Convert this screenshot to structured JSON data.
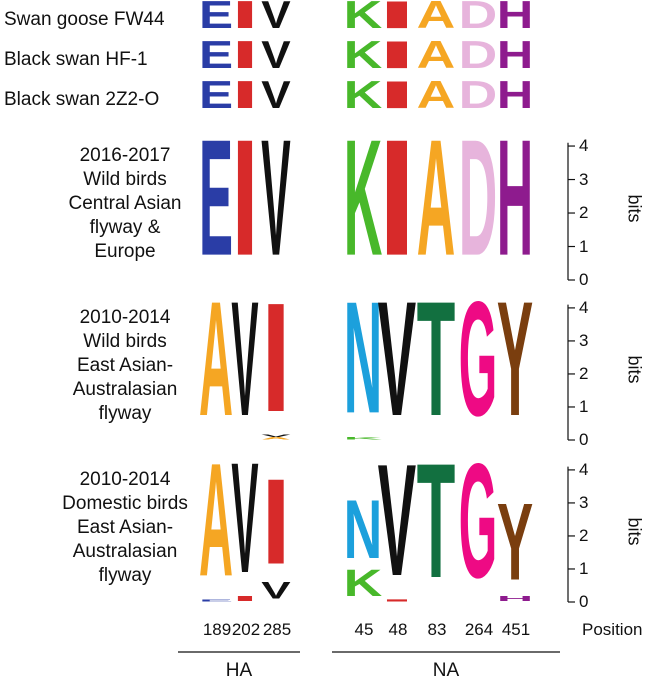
{
  "colors": {
    "E": "#2a3da6",
    "I": "#d72a2a",
    "V": "#111111",
    "K": "#48b82a",
    "A": "#f5a623",
    "D": "#e7b4dc",
    "H": "#8e1b8e",
    "N": "#1ca0dc",
    "T": "#127040",
    "G": "#ee0a84",
    "Y": "#7a3e0f"
  },
  "chart_data": {
    "type": "sequence-logo",
    "ylabel": "bits",
    "ylim": [
      0,
      4.3
    ],
    "yticks": [
      "0",
      "1",
      "2",
      "3",
      "4"
    ],
    "positions": [
      "189",
      "202",
      "285",
      "45",
      "48",
      "83",
      "264",
      "451"
    ],
    "position_label": "Position",
    "groups": [
      {
        "name": "HA",
        "positions": [
          "189",
          "202",
          "285"
        ]
      },
      {
        "name": "NA",
        "positions": [
          "45",
          "48",
          "83",
          "264",
          "451"
        ]
      }
    ],
    "strains": [
      {
        "name": "Swan goose FW44",
        "residues": [
          "E",
          "I",
          "V",
          "K",
          "I",
          "A",
          "D",
          "H"
        ]
      },
      {
        "name": "Black swan HF-1",
        "residues": [
          "E",
          "I",
          "V",
          "K",
          "I",
          "A",
          "D",
          "H"
        ]
      },
      {
        "name": "Black swan 2Z2-O",
        "residues": [
          "E",
          "I",
          "V",
          "K",
          "I",
          "A",
          "D",
          "H"
        ]
      }
    ],
    "logos": [
      {
        "label": [
          "2016-2017",
          "Wild birds",
          "Central Asian",
          "flyway &",
          "Europe"
        ],
        "columns": [
          [
            {
              "letter": "E",
              "bits": 4.1
            }
          ],
          [
            {
              "letter": "I",
              "bits": 4.1
            }
          ],
          [
            {
              "letter": "V",
              "bits": 4.1
            }
          ],
          [
            {
              "letter": "K",
              "bits": 4.1
            }
          ],
          [
            {
              "letter": "I",
              "bits": 4.1
            }
          ],
          [
            {
              "letter": "A",
              "bits": 4.1
            }
          ],
          [
            {
              "letter": "D",
              "bits": 4.1
            }
          ],
          [
            {
              "letter": "H",
              "bits": 4.1
            }
          ]
        ]
      },
      {
        "label": [
          "2010-2014",
          "Wild birds",
          "East Asian-",
          "Australasian",
          "flyway"
        ],
        "columns": [
          [
            {
              "letter": "A",
              "bits": 4.1
            }
          ],
          [
            {
              "letter": "V",
              "bits": 4.1
            }
          ],
          [
            {
              "letter": "A",
              "bits": 0.08
            },
            {
              "letter": "V",
              "bits": 0.08
            },
            {
              "letter": "I",
              "bits": 3.9
            }
          ],
          [
            {
              "letter": "K",
              "bits": 0.1
            },
            {
              "letter": "N",
              "bits": 4.0
            }
          ],
          [
            {
              "letter": "V",
              "bits": 4.1
            }
          ],
          [
            {
              "letter": "T",
              "bits": 4.1
            }
          ],
          [
            {
              "letter": "G",
              "bits": 4.1
            }
          ],
          [
            {
              "letter": "Y",
              "bits": 4.1
            }
          ]
        ]
      },
      {
        "label": [
          "2010-2014",
          "Domestic birds",
          "East Asian-",
          "Australasian",
          "flyway"
        ],
        "columns": [
          [
            {
              "letter": "E",
              "bits": 0.06
            },
            {
              "letter": "A",
              "bits": 4.05
            }
          ],
          [
            {
              "letter": "I",
              "bits": 0.18
            },
            {
              "letter": "V",
              "bits": 3.95
            }
          ],
          [
            {
              "letter": "V",
              "bits": 0.6
            },
            {
              "letter": "I",
              "bits": 3.05
            }
          ],
          [
            {
              "letter": "K",
              "bits": 0.95
            },
            {
              "letter": "N",
              "bits": 2.1
            }
          ],
          [
            {
              "letter": "I",
              "bits": 0.08
            },
            {
              "letter": "V",
              "bits": 4.0
            }
          ],
          [
            {
              "letter": "T",
              "bits": 4.1
            }
          ],
          [
            {
              "letter": "G",
              "bits": 4.1
            }
          ],
          [
            {
              "letter": "H",
              "bits": 0.18
            },
            {
              "letter": "Y",
              "bits": 2.75
            }
          ]
        ]
      }
    ]
  }
}
